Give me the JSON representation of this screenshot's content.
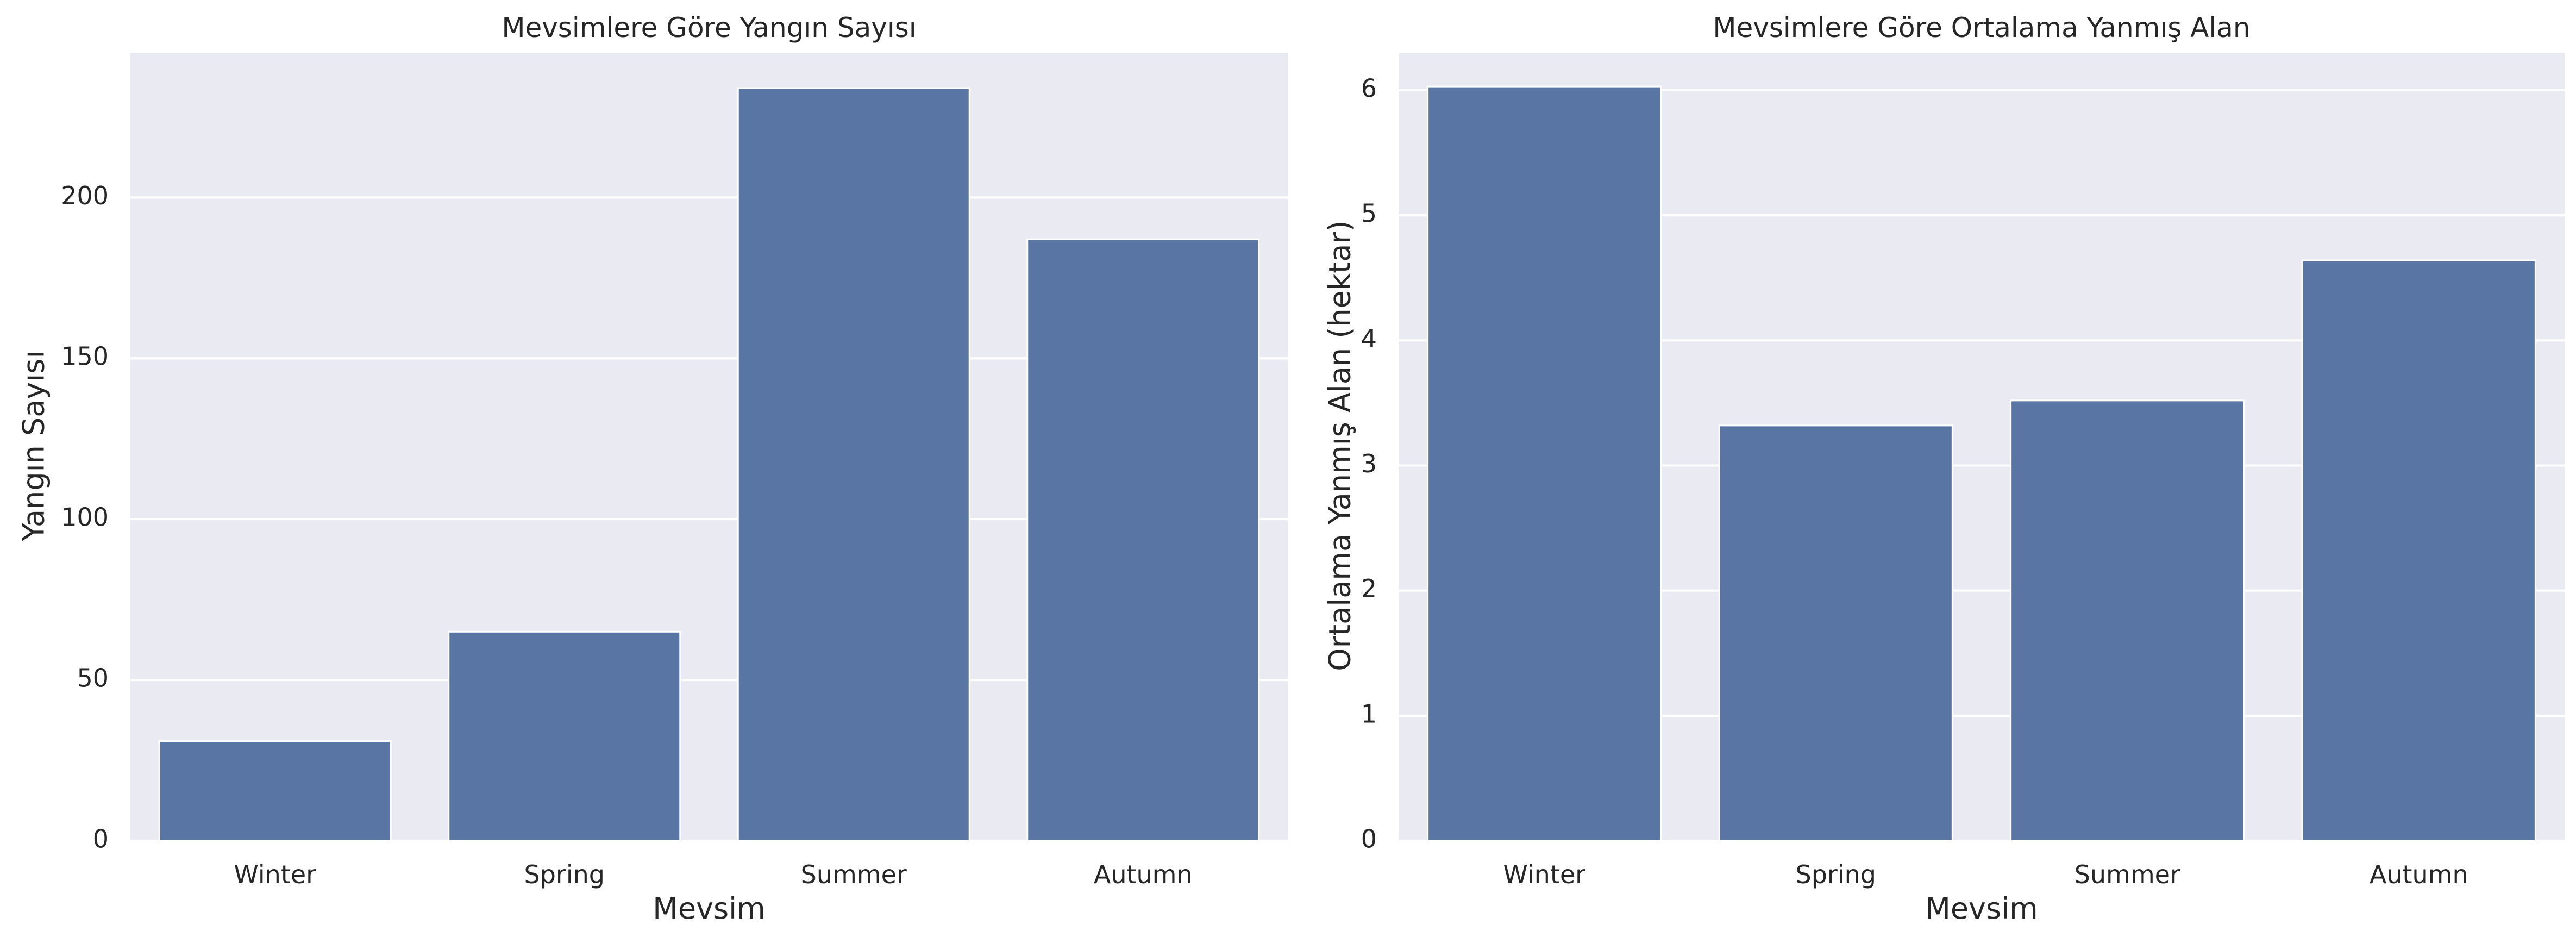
{
  "style": {
    "background": "#ffffff",
    "plot_background": "#eaeaf2",
    "grid_color": "#ffffff",
    "bar_color": "#5975a4",
    "text_color": "#262626"
  },
  "chart_data": [
    {
      "type": "bar",
      "title": "Mevsimlere Göre Yangın Sayısı",
      "xlabel": "Mevsim",
      "ylabel": "Yangın Sayısı",
      "categories": [
        "Winter",
        "Spring",
        "Summer",
        "Autumn"
      ],
      "values": [
        31,
        65,
        234,
        187
      ],
      "ylim": [
        0,
        245
      ],
      "yticks": [
        0,
        50,
        100,
        150,
        200
      ],
      "grid": true
    },
    {
      "type": "bar",
      "title": "Mevsimlere Göre Ortalama Yanmış Alan",
      "xlabel": "Mevsim",
      "ylabel": "Ortalama Yanmış Alan (hektar)",
      "categories": [
        "Winter",
        "Spring",
        "Summer",
        "Autumn"
      ],
      "values": [
        6.03,
        3.32,
        3.52,
        4.64
      ],
      "ylim": [
        0,
        6.3
      ],
      "yticks": [
        0,
        1,
        2,
        3,
        4,
        5,
        6
      ],
      "grid": true
    }
  ]
}
